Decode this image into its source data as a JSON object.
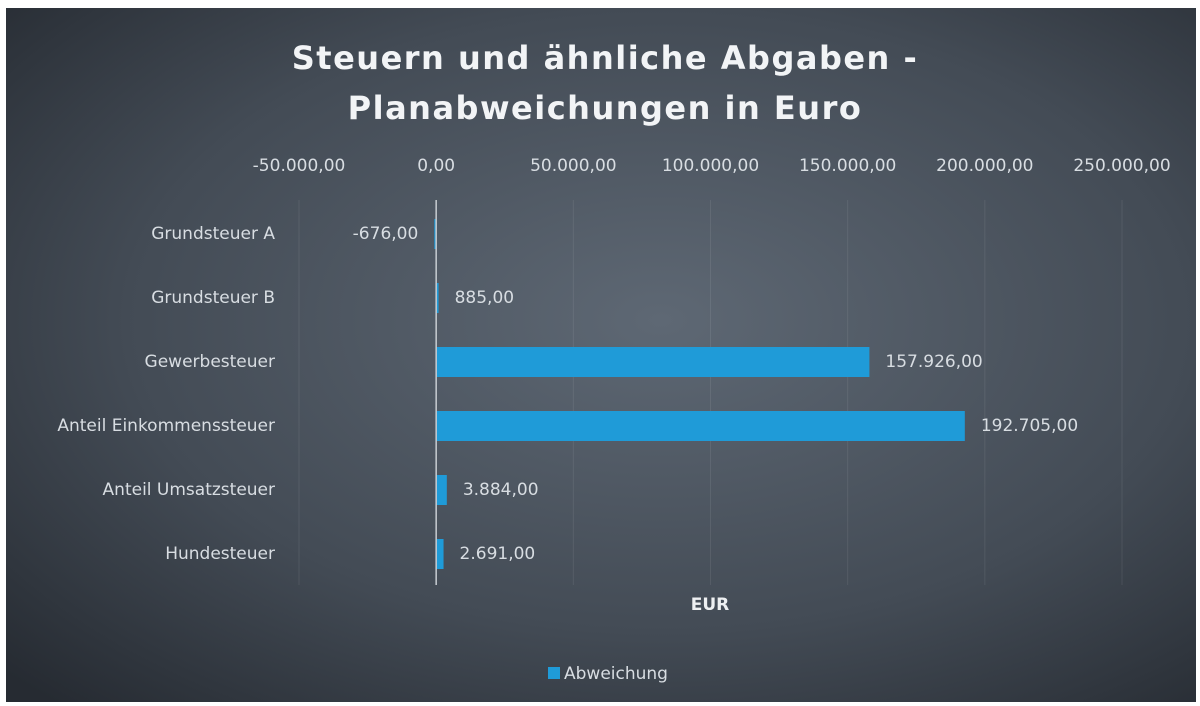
{
  "chart_data": {
    "type": "hbar",
    "title": [
      "Steuern und ähnliche Abgaben -",
      "Planabweichungen in Euro"
    ],
    "categories": [
      "Grundsteuer A",
      "Grundsteuer B",
      "Gewerbesteuer",
      "Anteil Einkommenssteuer",
      "Anteil Umsatzsteuer",
      "Hundesteuer"
    ],
    "series": [
      {
        "name": "Abweichung",
        "color": "#1f9bd8",
        "values": [
          -676,
          885,
          157926,
          192705,
          3884,
          2691
        ],
        "value_labels": [
          "-676,00",
          "885,00",
          "157.926,00",
          "192.705,00",
          "3.884,00",
          "2.691,00"
        ]
      }
    ],
    "xlabel": "EUR",
    "xlim": [
      -50000,
      250000
    ],
    "xticks": [
      {
        "value": -50000,
        "label": "-50.000,00"
      },
      {
        "value": 0,
        "label": "0,00"
      },
      {
        "value": 50000,
        "label": "50.000,00"
      },
      {
        "value": 100000,
        "label": "100.000,00"
      },
      {
        "value": 150000,
        "label": "150.000,00"
      },
      {
        "value": 200000,
        "label": "200.000,00"
      },
      {
        "value": 250000,
        "label": "250.000,00"
      }
    ],
    "grid": true,
    "legend": "bottom"
  }
}
